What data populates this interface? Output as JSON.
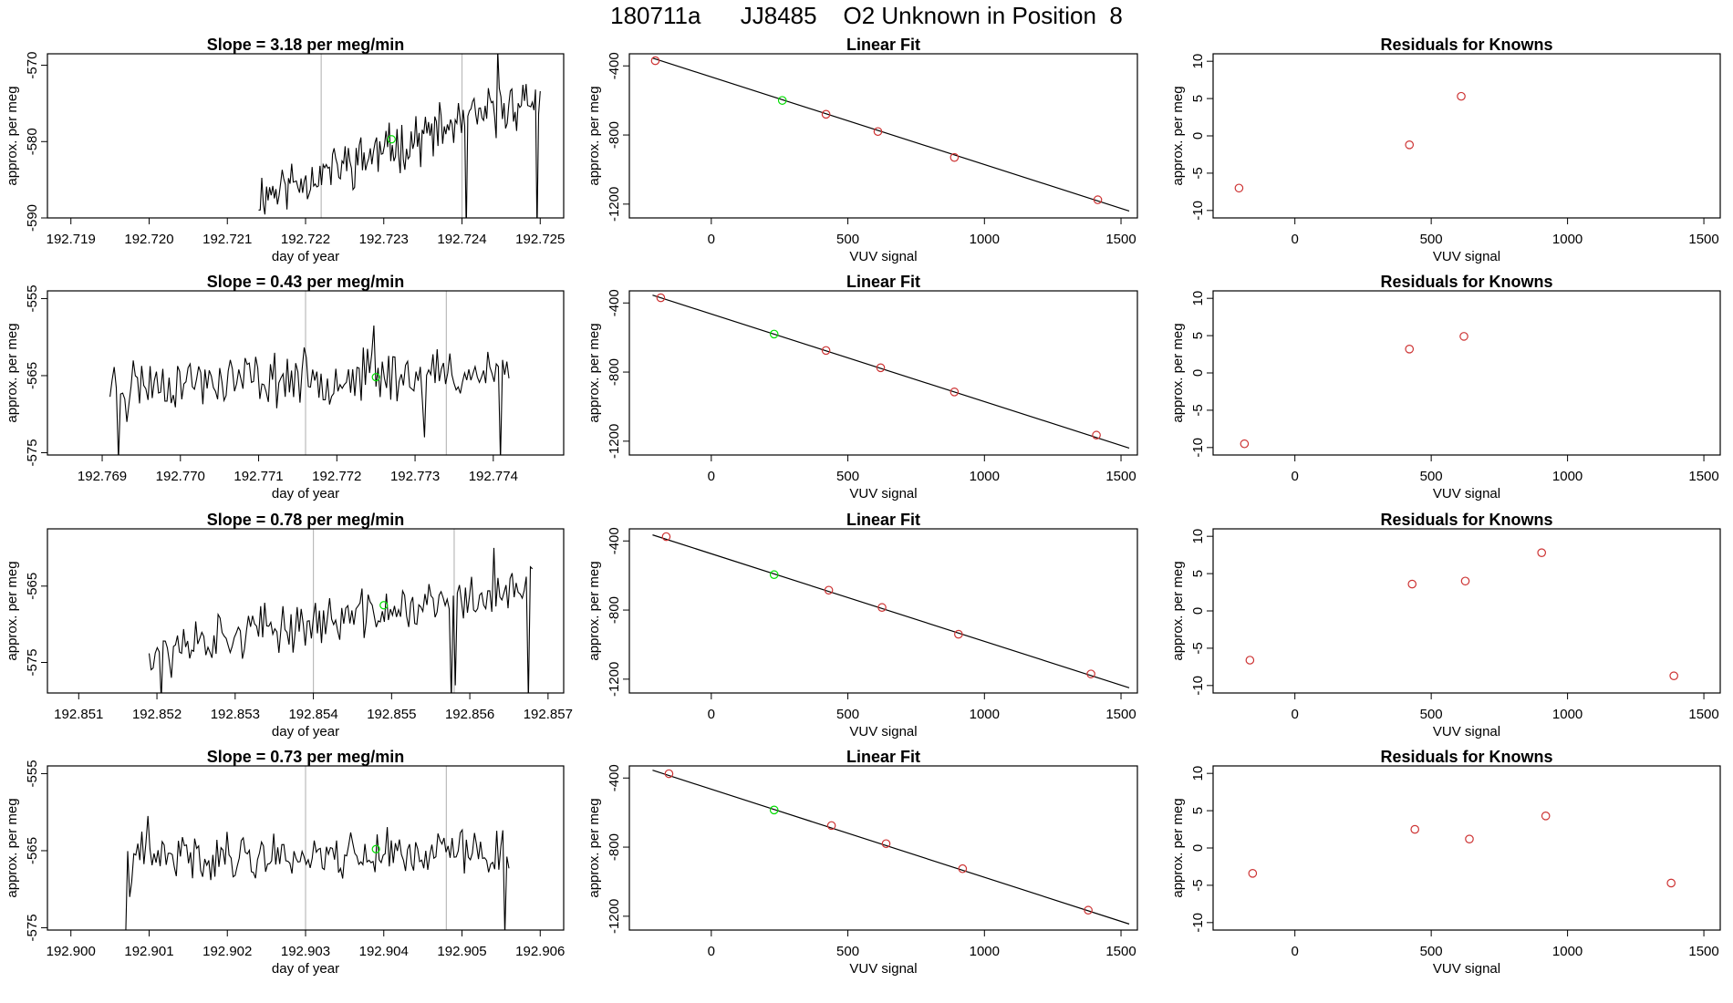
{
  "title": "180711a      JJ8485    O2 Unknown in Position  8",
  "colors": {
    "trace": "#000000",
    "known_point": "#cd3333",
    "current_point": "#00dd00",
    "vline": "#bbbbbb",
    "fit_line": "#000000"
  },
  "chart_data": [
    {
      "row": 1,
      "type": "line",
      "title": "Slope =  3.18  per meg/min",
      "xlabel": "day of year",
      "ylabel": "approx. per meg",
      "xlim": [
        192.7187,
        192.7253
      ],
      "ylim": [
        -590,
        -568.5
      ],
      "xticks": [
        "192.719",
        "192.720",
        "192.721",
        "192.722",
        "192.723",
        "192.724",
        "192.725"
      ],
      "yticks": [
        "-590",
        "-580",
        "-570"
      ],
      "vlines": [
        192.7222,
        192.724
      ],
      "marker": {
        "x": 192.7231,
        "y": -579.7
      },
      "trace": {
        "x_start": 192.7214,
        "x_end": 192.725,
        "start_level": -587,
        "end_level": -574,
        "noise": 2.5,
        "n": 180,
        "seed": 11,
        "dips": [
          [
            0.74,
            -592
          ],
          [
            0.99,
            -592
          ]
        ],
        "spikes": [
          [
            0.85,
            -568
          ]
        ]
      }
    },
    {
      "row": 1,
      "type": "scatter",
      "title": "Linear Fit",
      "xlabel": "VUV signal",
      "ylabel": "approx. per meg",
      "xlim": [
        -300,
        1560
      ],
      "ylim": [
        -1280,
        -330
      ],
      "xticks": [
        "0",
        "500",
        "1000",
        "1500"
      ],
      "yticks": [
        "-400",
        "-800",
        "-1200"
      ],
      "fit": {
        "x1": -215,
        "y1": -355,
        "x2": 1530,
        "y2": -1240
      },
      "points": [
        {
          "x": -205,
          "y": -370
        },
        {
          "x": 420,
          "y": -680
        },
        {
          "x": 610,
          "y": -780
        },
        {
          "x": 890,
          "y": -930
        },
        {
          "x": 1415,
          "y": -1175
        }
      ],
      "current": {
        "x": 260,
        "y": -600
      }
    },
    {
      "row": 1,
      "type": "scatter",
      "title": "Residuals for Knowns",
      "xlabel": "VUV signal",
      "ylabel": "approx. per meg",
      "xlim": [
        -300,
        1560
      ],
      "ylim": [
        -11,
        11
      ],
      "xticks": [
        "0",
        "500",
        "1000",
        "1500"
      ],
      "yticks": [
        "10",
        "5",
        "0",
        "-5",
        "-10"
      ],
      "points": [
        {
          "x": -205,
          "y": -7.0
        },
        {
          "x": 420,
          "y": -1.2
        },
        {
          "x": 610,
          "y": 5.3
        }
      ]
    },
    {
      "row": 2,
      "type": "line",
      "title": "Slope =  0.43  per meg/min",
      "xlabel": "day of year",
      "ylabel": "approx. per meg",
      "xlim": [
        192.7683,
        192.7749
      ],
      "ylim": [
        -575.3,
        -554
      ],
      "xticks": [
        "192.769",
        "192.770",
        "192.771",
        "192.772",
        "192.773",
        "192.774"
      ],
      "yticks": [
        "-575",
        "-565",
        "-555"
      ],
      "vlines": [
        192.7716,
        192.7734
      ],
      "marker": {
        "x": 192.7725,
        "y": -565.2
      },
      "trace": {
        "x_start": 192.7691,
        "x_end": 192.7742,
        "start_level": -566,
        "end_level": -564.5,
        "noise": 2.6,
        "n": 190,
        "seed": 23,
        "dips": [
          [
            0.02,
            -576
          ],
          [
            0.04,
            -571
          ],
          [
            0.79,
            -573
          ],
          [
            0.98,
            -576
          ]
        ],
        "spikes": [
          [
            0.66,
            -558.5
          ]
        ]
      }
    },
    {
      "row": 2,
      "type": "scatter",
      "title": "Linear Fit",
      "xlabel": "VUV signal",
      "ylabel": "approx. per meg",
      "xlim": [
        -300,
        1560
      ],
      "ylim": [
        -1280,
        -330
      ],
      "xticks": [
        "0",
        "500",
        "1000",
        "1500"
      ],
      "yticks": [
        "-400",
        "-800",
        "-1200"
      ],
      "fit": {
        "x1": -215,
        "y1": -355,
        "x2": 1530,
        "y2": -1240
      },
      "points": [
        {
          "x": -185,
          "y": -370
        },
        {
          "x": 420,
          "y": -675
        },
        {
          "x": 620,
          "y": -775
        },
        {
          "x": 890,
          "y": -915
        },
        {
          "x": 1410,
          "y": -1165
        }
      ],
      "current": {
        "x": 230,
        "y": -580
      }
    },
    {
      "row": 2,
      "type": "scatter",
      "title": "Residuals for Knowns",
      "xlabel": "VUV signal",
      "ylabel": "approx. per meg",
      "xlim": [
        -300,
        1560
      ],
      "ylim": [
        -11,
        11
      ],
      "xticks": [
        "0",
        "500",
        "1000",
        "1500"
      ],
      "yticks": [
        "10",
        "5",
        "0",
        "-5",
        "-10"
      ],
      "points": [
        {
          "x": -185,
          "y": -9.5
        },
        {
          "x": 420,
          "y": 3.2
        },
        {
          "x": 620,
          "y": 4.9
        }
      ]
    },
    {
      "row": 3,
      "type": "line",
      "title": "Slope =  0.78  per meg/min",
      "xlabel": "day of year",
      "ylabel": "approx. per meg",
      "xlim": [
        192.8506,
        192.8572
      ],
      "ylim": [
        -579,
        -557.5
      ],
      "xticks": [
        "192.851",
        "192.852",
        "192.853",
        "192.854",
        "192.855",
        "192.856",
        "192.857"
      ],
      "yticks": [
        "-575",
        "-565"
      ],
      "vlines": [
        192.854,
        192.8558
      ],
      "marker": {
        "x": 192.8549,
        "y": -567.5
      },
      "trace": {
        "x_start": 192.8519,
        "x_end": 192.8568,
        "start_level": -573,
        "end_level": -565.5,
        "noise": 2.4,
        "n": 190,
        "seed": 37,
        "dips": [
          [
            0.03,
            -580
          ],
          [
            0.06,
            -577
          ],
          [
            0.79,
            -580
          ],
          [
            0.8,
            -578
          ],
          [
            0.99,
            -580
          ]
        ],
        "spikes": [
          [
            0.9,
            -560
          ]
        ]
      }
    },
    {
      "row": 3,
      "type": "scatter",
      "title": "Linear Fit",
      "xlabel": "VUV signal",
      "ylabel": "approx. per meg",
      "xlim": [
        -300,
        1560
      ],
      "ylim": [
        -1280,
        -330
      ],
      "xticks": [
        "0",
        "500",
        "1000",
        "1500"
      ],
      "yticks": [
        "-400",
        "-800",
        "-1200"
      ],
      "fit": {
        "x1": -215,
        "y1": -365,
        "x2": 1530,
        "y2": -1250
      },
      "points": [
        {
          "x": -165,
          "y": -375
        },
        {
          "x": 430,
          "y": -685
        },
        {
          "x": 625,
          "y": -785
        },
        {
          "x": 905,
          "y": -940
        },
        {
          "x": 1390,
          "y": -1170
        }
      ],
      "current": {
        "x": 230,
        "y": -595
      }
    },
    {
      "row": 3,
      "type": "scatter",
      "title": "Residuals for Knowns",
      "xlabel": "VUV signal",
      "ylabel": "approx. per meg",
      "xlim": [
        -300,
        1560
      ],
      "ylim": [
        -11,
        11
      ],
      "xticks": [
        "0",
        "500",
        "1000",
        "1500"
      ],
      "yticks": [
        "10",
        "5",
        "0",
        "-5",
        "-10"
      ],
      "points": [
        {
          "x": -165,
          "y": -6.6
        },
        {
          "x": 430,
          "y": 3.6
        },
        {
          "x": 625,
          "y": 4.0
        },
        {
          "x": 905,
          "y": 7.8
        },
        {
          "x": 1390,
          "y": -8.7
        }
      ]
    },
    {
      "row": 4,
      "type": "line",
      "title": "Slope =  0.73  per meg/min",
      "xlabel": "day of year",
      "ylabel": "approx. per meg",
      "xlim": [
        192.8997,
        192.9063
      ],
      "ylim": [
        -575.3,
        -554
      ],
      "xticks": [
        "192.900",
        "192.901",
        "192.902",
        "192.903",
        "192.904",
        "192.905",
        "192.906"
      ],
      "yticks": [
        "-575",
        "-565",
        "-555"
      ],
      "vlines": [
        192.903,
        192.9048
      ],
      "marker": {
        "x": 192.9039,
        "y": -564.8
      },
      "trace": {
        "x_start": 192.9007,
        "x_end": 192.9056,
        "start_level": -566,
        "end_level": -565,
        "noise": 2.3,
        "n": 190,
        "seed": 41,
        "dips": [
          [
            0.0,
            -576
          ],
          [
            0.01,
            -571
          ],
          [
            0.99,
            -576
          ]
        ],
        "spikes": [
          [
            0.06,
            -560.5
          ]
        ]
      }
    },
    {
      "row": 4,
      "type": "scatter",
      "title": "Linear Fit",
      "xlabel": "VUV signal",
      "ylabel": "approx. per meg",
      "xlim": [
        -300,
        1560
      ],
      "ylim": [
        -1280,
        -330
      ],
      "xticks": [
        "0",
        "500",
        "1000",
        "1500"
      ],
      "yticks": [
        "-400",
        "-800",
        "-1200"
      ],
      "fit": {
        "x1": -215,
        "y1": -355,
        "x2": 1530,
        "y2": -1245
      },
      "points": [
        {
          "x": -155,
          "y": -375
        },
        {
          "x": 440,
          "y": -675
        },
        {
          "x": 640,
          "y": -780
        },
        {
          "x": 920,
          "y": -925
        },
        {
          "x": 1380,
          "y": -1165
        }
      ],
      "current": {
        "x": 230,
        "y": -585
      }
    },
    {
      "row": 4,
      "type": "scatter",
      "title": "Residuals for Knowns",
      "xlabel": "VUV signal",
      "ylabel": "approx. per meg",
      "xlim": [
        -300,
        1560
      ],
      "ylim": [
        -11,
        11
      ],
      "xticks": [
        "0",
        "500",
        "1000",
        "1500"
      ],
      "yticks": [
        "10",
        "5",
        "0",
        "-5",
        "-10"
      ],
      "points": [
        {
          "x": -155,
          "y": -3.4
        },
        {
          "x": 440,
          "y": 2.5
        },
        {
          "x": 640,
          "y": 1.2
        },
        {
          "x": 920,
          "y": 4.3
        },
        {
          "x": 1380,
          "y": -4.7
        }
      ]
    }
  ]
}
